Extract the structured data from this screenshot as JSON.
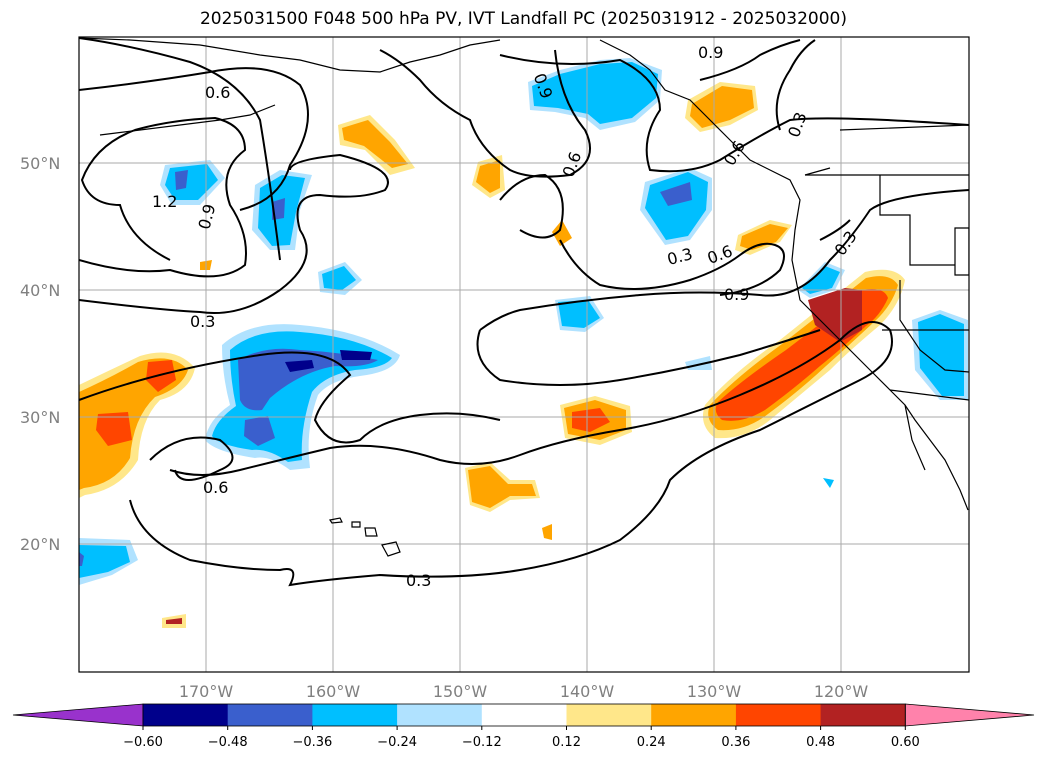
{
  "title": "2025031500 F048 500 hPa PV, IVT Landfall PC (2025031912 - 2025032000)",
  "map": {
    "lat_ticks": [
      "50°N",
      "40°N",
      "30°N",
      "20°N"
    ],
    "lon_ticks": [
      "170°W",
      "160°W",
      "150°W",
      "140°W",
      "130°W",
      "120°W"
    ],
    "contour_labels": [
      "0.6",
      "1.2",
      "0.9",
      "0.3",
      "0.9",
      "0.6",
      "0.3",
      "0.6",
      "0.9",
      "0.3",
      "0.6",
      "0.3",
      "0.6",
      "0.9",
      "0.3"
    ]
  },
  "colorbar": {
    "ticks": [
      "−0.60",
      "−0.48",
      "−0.36",
      "−0.24",
      "−0.12",
      "0.12",
      "0.24",
      "0.36",
      "0.48",
      "0.60"
    ],
    "colors": [
      "#9932CC",
      "#00008B",
      "#3A5FCD",
      "#00BFFF",
      "#B0E2FF",
      "#FFFFFF",
      "#FFE78A",
      "#FFA500",
      "#FF4500",
      "#B22222",
      "#FF82AB"
    ]
  }
}
